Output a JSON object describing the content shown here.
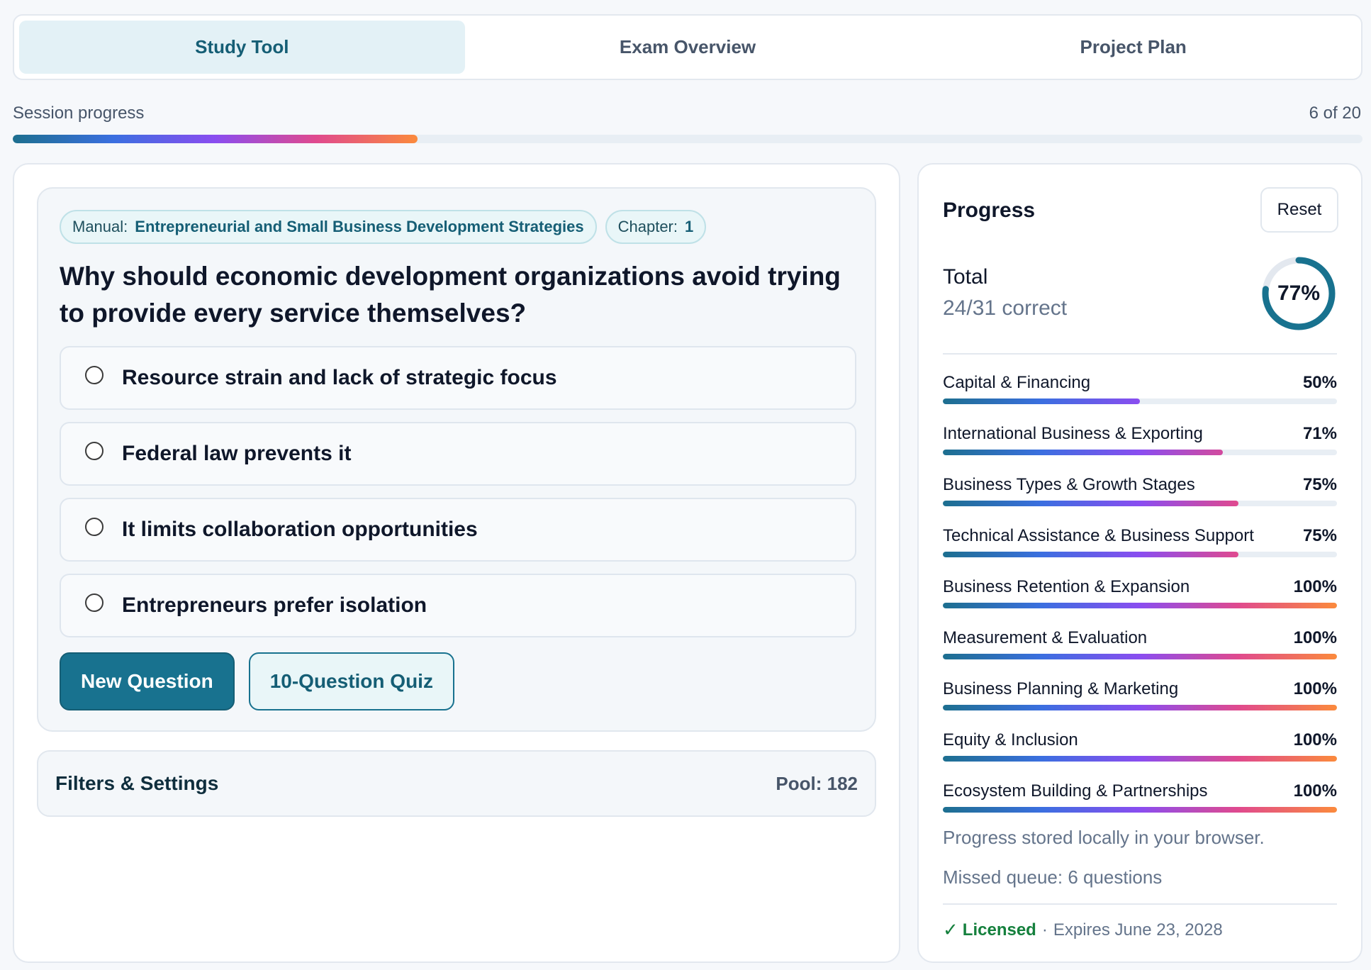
{
  "tabs": [
    {
      "label": "Study Tool",
      "active": true
    },
    {
      "label": "Exam Overview",
      "active": false
    },
    {
      "label": "Project Plan",
      "active": false
    }
  ],
  "session": {
    "label": "Session progress",
    "count": "6 of 20",
    "progress_fraction": 0.3
  },
  "question": {
    "manual_label": "Manual:",
    "manual_value": "Entrepreneurial and Small Business Development Strategies",
    "chapter_label": "Chapter:",
    "chapter_value": "1",
    "text": "Why should economic development organizations avoid trying to provide every service themselves?",
    "options": [
      "Resource strain and lack of strategic focus",
      "Federal law prevents it",
      "It limits collaboration opportunities",
      "Entrepreneurs prefer isolation"
    ],
    "new_question_label": "New Question",
    "quiz_label": "10-Question Quiz"
  },
  "filters": {
    "title": "Filters & Settings",
    "pool": "Pool: 182"
  },
  "progress": {
    "title": "Progress",
    "reset_label": "Reset",
    "total_label": "Total",
    "total_correct": "24/31 correct",
    "total_percent": "77%",
    "total_fraction": 0.77,
    "categories": [
      {
        "name": "Capital & Financing",
        "pct": "50%",
        "value": 0.5
      },
      {
        "name": "International Business & Exporting",
        "pct": "71%",
        "value": 0.71
      },
      {
        "name": "Business Types & Growth Stages",
        "pct": "75%",
        "value": 0.75
      },
      {
        "name": "Technical Assistance & Business Support",
        "pct": "75%",
        "value": 0.75
      },
      {
        "name": "Business Retention & Expansion",
        "pct": "100%",
        "value": 1.0
      },
      {
        "name": "Measurement & Evaluation",
        "pct": "100%",
        "value": 1.0
      },
      {
        "name": "Business Planning & Marketing",
        "pct": "100%",
        "value": 1.0
      },
      {
        "name": "Equity & Inclusion",
        "pct": "100%",
        "value": 1.0
      },
      {
        "name": "Ecosystem Building & Partnerships",
        "pct": "100%",
        "value": 1.0
      }
    ],
    "storage_note": "Progress stored locally in your browser.",
    "missed_queue": "Missed queue: 6 questions",
    "license_status": "Licensed",
    "license_expiry": "Expires June 23, 2028"
  },
  "colors": {
    "accent": "#18728f",
    "gradient": [
      "#1d6f8f",
      "#3b6fe0",
      "#8a4df0",
      "#e04a8e",
      "#fb8a3c"
    ],
    "ring_track": "#e3e8ef",
    "ring_fill": "#18728f",
    "license_green": "#15803d"
  },
  "icons": {
    "check": "check-icon",
    "radio": "radio-icon"
  }
}
